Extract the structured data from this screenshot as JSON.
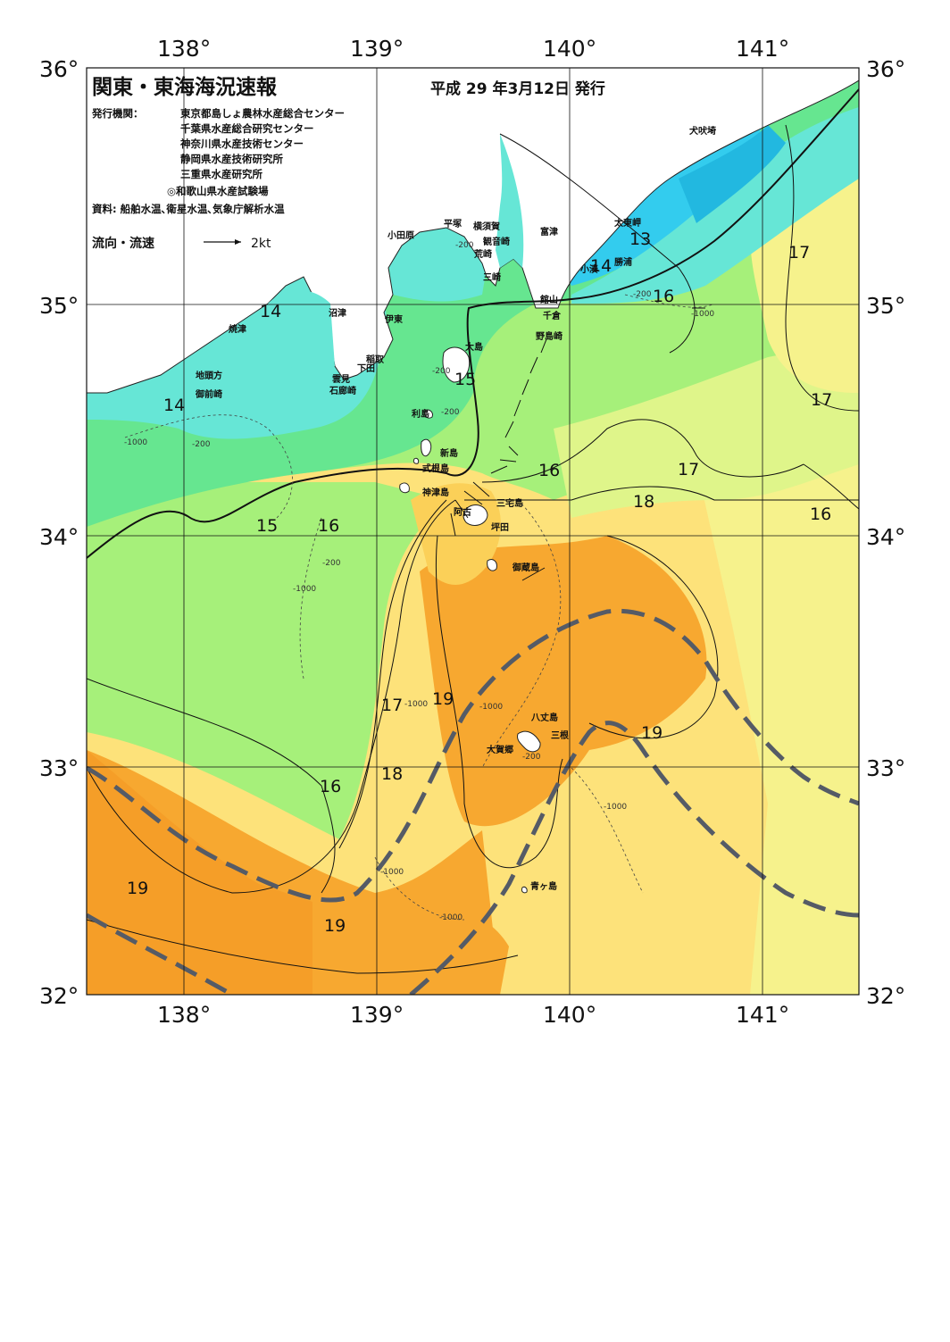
{
  "header": {
    "title": "関東・東海海況速報",
    "date": "平成 29 年3月12日 発行",
    "publisher_label": "発行機関：",
    "publishers": [
      "東京都島しょ農林水産総合センター",
      "千葉県水産総合研究センター",
      "神奈川県水産技術センター",
      "静岡県水産技術研究所",
      "三重県水産研究所",
      "◎和歌山県水産試験場"
    ],
    "sources": "資料: 船舶水温､衛星水温､気象庁解析水温",
    "flow_legend": "流向・流速",
    "flow_scale": "2kt"
  },
  "axes": {
    "lon_top": [
      "138°",
      "139°",
      "140°",
      "141°"
    ],
    "lon_bottom": [
      "138°",
      "139°",
      "140°",
      "141°"
    ],
    "lat_left": [
      "36°",
      "35°",
      "34°",
      "33°",
      "32°"
    ],
    "lat_right": [
      "36°",
      "35°",
      "34°",
      "33°",
      "32°"
    ]
  },
  "places": [
    "犬吠埼",
    "太東岬",
    "勝浦",
    "小湊",
    "館山",
    "千倉",
    "野島崎",
    "富津",
    "横須賀",
    "観音崎",
    "荒崎",
    "三崎",
    "平塚",
    "小田原",
    "沼津",
    "伊東",
    "稲取",
    "下田",
    "雲見",
    "石廊崎",
    "焼津",
    "地頭方",
    "御前崎",
    "大島",
    "利島",
    "新島",
    "式根島",
    "神津島",
    "三宅島",
    "坪田",
    "阿古",
    "御蔵島",
    "八丈島",
    "三根",
    "大賀郷",
    "青ヶ島"
  ],
  "temperature_labels": [
    "13",
    "14",
    "14",
    "14",
    "15",
    "15",
    "16",
    "16",
    "16",
    "16",
    "16",
    "17",
    "17",
    "17",
    "17",
    "18",
    "18",
    "19",
    "19",
    "19",
    "19",
    "19",
    "17"
  ],
  "depth_labels": [
    "-200",
    "-1000"
  ],
  "colors": {
    "t13": "#33ccee",
    "t14": "#66e6d6",
    "t15": "#66e690",
    "t16": "#a6f07a",
    "t17": "#dff58a",
    "t18": "#fde27a",
    "t19": "#fbd058",
    "t20": "#f7a830",
    "land": "#ffffff",
    "kuroshio": "#555b66"
  }
}
